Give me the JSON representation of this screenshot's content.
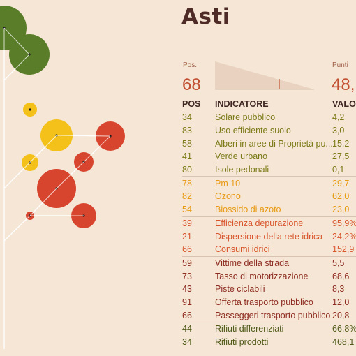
{
  "city": "Asti",
  "summary": {
    "pos_label": "Pos.",
    "pos_value": "68",
    "points_label": "Punti",
    "points_value": "48,"
  },
  "table": {
    "headers": {
      "pos": "POS",
      "indicator": "INDICATORE",
      "value": "VALOR"
    },
    "rows": [
      {
        "pos": "34",
        "name": "Solare pubblico",
        "value": "4,2",
        "group": "green"
      },
      {
        "pos": "83",
        "name": "Uso efficiente suolo",
        "value": "3,0",
        "group": "green"
      },
      {
        "pos": "58",
        "name": "Alberi in aree di Proprietà pu...",
        "value": "15,2",
        "group": "green"
      },
      {
        "pos": "41",
        "name": "Verde urbano",
        "value": "27,5",
        "group": "green"
      },
      {
        "pos": "80",
        "name": "Isole pedonali",
        "value": "0,1",
        "group": "green"
      },
      {
        "pos": "78",
        "name": "Pm 10",
        "value": "29,7",
        "group": "yellow"
      },
      {
        "pos": "82",
        "name": "Ozono",
        "value": "62,0",
        "group": "yellow"
      },
      {
        "pos": "54",
        "name": "Biossido di azoto",
        "value": "23,0",
        "group": "yellow"
      },
      {
        "pos": "39",
        "name": "Efficienza depurazione",
        "value": "95,9%",
        "group": "orange"
      },
      {
        "pos": "21",
        "name": "Dispersione della rete idrica",
        "value": "24,2%",
        "group": "orange"
      },
      {
        "pos": "66",
        "name": "Consumi idrici",
        "value": "152,9",
        "group": "orange"
      },
      {
        "pos": "59",
        "name": "Vittime della strada",
        "value": "5,5",
        "group": "brown"
      },
      {
        "pos": "73",
        "name": "Tasso di motorizzazione",
        "value": "68,6",
        "group": "brown"
      },
      {
        "pos": "43",
        "name": "Piste ciclabili",
        "value": "8,3",
        "group": "brown"
      },
      {
        "pos": "91",
        "name": "Offerta trasporto pubblico",
        "value": "12,0",
        "group": "brown"
      },
      {
        "pos": "66",
        "name": "Passeggeri trasporto pubblico",
        "value": "20,8",
        "group": "brown"
      },
      {
        "pos": "44",
        "name": "Rifiuti differenziati",
        "value": "66,8%",
        "group": "olive"
      },
      {
        "pos": "34",
        "name": "Rifiuti prodotti",
        "value": "468,1",
        "group": "olive"
      }
    ]
  },
  "colors": {
    "background": "#f5e6d6",
    "title": "#4e2b26",
    "green": "#7a7a17",
    "yellow": "#e89a12",
    "orange": "#d9552c",
    "brown": "#8e2c20",
    "olive": "#4f5a18",
    "circle_green": "#5a7d2a",
    "circle_yellow": "#f4c11a",
    "circle_red": "#d8452e",
    "trunk": "#ffffff",
    "spark_fill": "#e9d3c0"
  },
  "tree": {
    "circles": [
      {
        "group": "green",
        "rank": 2
      },
      {
        "group": "green",
        "rank": 4
      },
      {
        "group": "yellow",
        "rank": 78
      },
      {
        "group": "yellow",
        "rank": 54
      },
      {
        "group": "yellow",
        "rank": 82
      },
      {
        "group": "red",
        "rank": 39
      },
      {
        "group": "red",
        "rank": 66
      },
      {
        "group": "red",
        "rank": 21
      },
      {
        "group": "red",
        "rank": 44
      },
      {
        "group": "red",
        "rank": 73
      }
    ]
  }
}
